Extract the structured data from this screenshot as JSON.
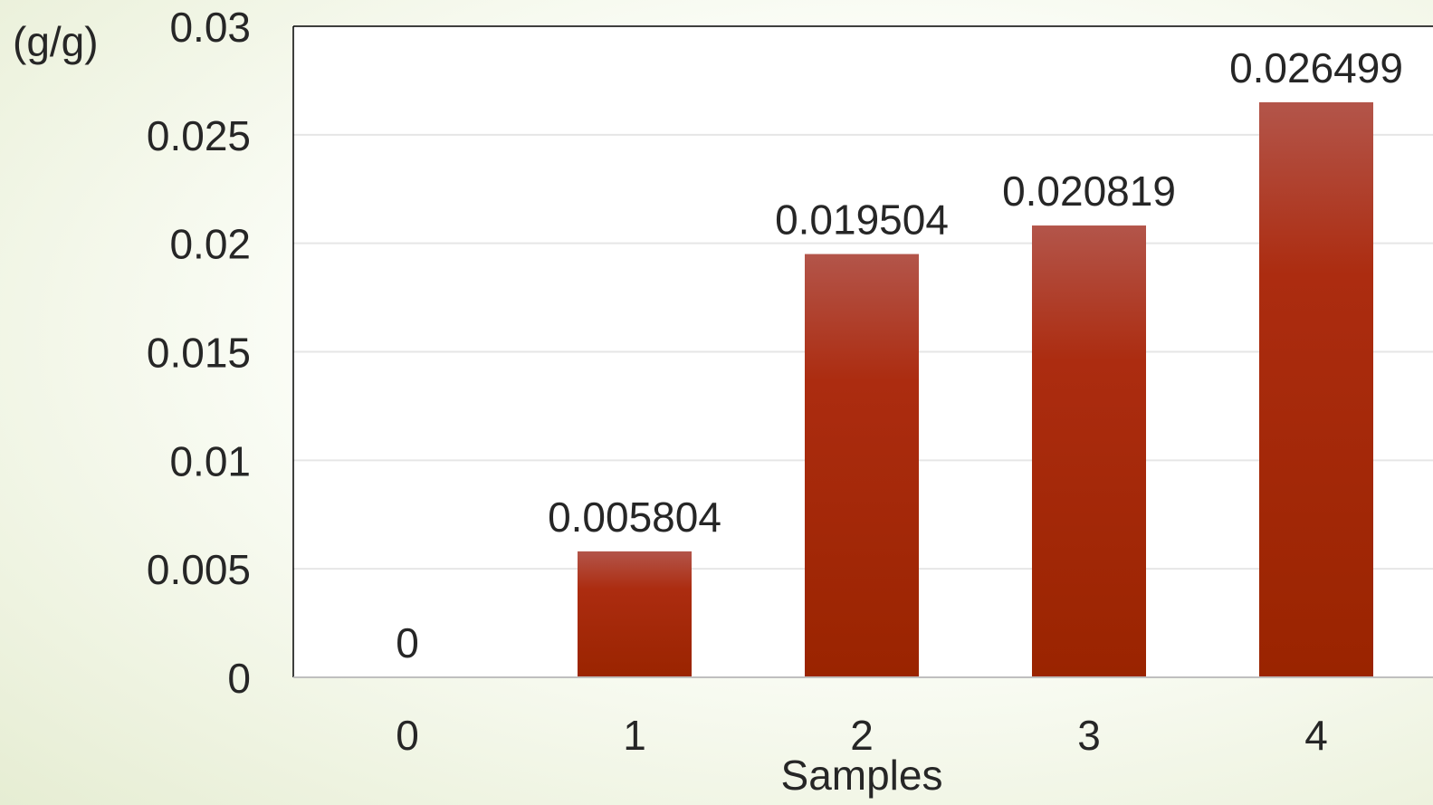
{
  "chart_data": {
    "type": "bar",
    "title": "",
    "xlabel": "Samples",
    "ylabel": "(g/g)",
    "categories": [
      "0",
      "1",
      "2",
      "3",
      "4"
    ],
    "values": [
      0,
      0.005804,
      0.019504,
      0.020819,
      0.026499
    ],
    "data_labels": [
      "0",
      "0.005804",
      "0.019504",
      "0.020819",
      "0.026499"
    ],
    "ylim": [
      0,
      0.03
    ],
    "yticks": [
      0,
      0.005,
      0.01,
      0.015,
      0.02,
      0.025,
      0.03
    ],
    "ytick_labels": [
      "0",
      "0.005",
      "0.01",
      "0.015",
      "0.02",
      "0.025",
      "0.03"
    ],
    "grid": true,
    "legend": "none",
    "bar_color_top": "#b3554a",
    "bar_color_mid": "#ac2c10",
    "bar_color_bottom": "#9a2400"
  }
}
